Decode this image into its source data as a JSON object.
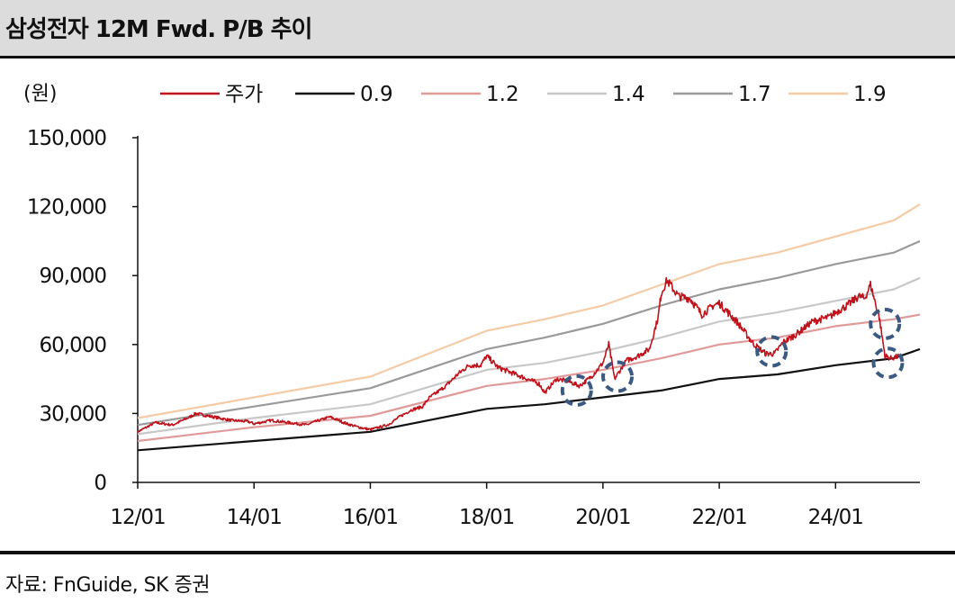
{
  "header": {
    "title": "삼성전자 12M Fwd. P/B 추이"
  },
  "source": {
    "text": "자료: FnGuide, SK 증권"
  },
  "chart_data": {
    "type": "line",
    "title": "삼성전자 12M Fwd. P/B 추이",
    "unit_label": "(원)",
    "xlabel": "",
    "ylabel": "(원)",
    "ylim": [
      0,
      150000
    ],
    "yticks": [
      0,
      30000,
      60000,
      90000,
      120000,
      150000
    ],
    "ytick_labels": [
      "0",
      "30,000",
      "60,000",
      "90,000",
      "120,000",
      "150,000"
    ],
    "xlim": [
      2012.0,
      2025.45
    ],
    "xticks": [
      2012,
      2014,
      2016,
      2018,
      2020,
      2022,
      2024
    ],
    "xtick_labels": [
      "12/01",
      "14/01",
      "16/01",
      "18/01",
      "20/01",
      "22/01",
      "24/01"
    ],
    "legend_position": "top",
    "series": [
      {
        "name": "주가",
        "color": "#c0121a",
        "noisy": true,
        "x": [
          2012.0,
          2012.3,
          2012.6,
          2012.9,
          2013.0,
          2013.3,
          2013.6,
          2013.9,
          2014.0,
          2014.3,
          2014.6,
          2014.9,
          2015.0,
          2015.3,
          2015.6,
          2015.8,
          2016.0,
          2016.3,
          2016.5,
          2016.7,
          2016.9,
          2017.0,
          2017.3,
          2017.5,
          2017.7,
          2017.9,
          2018.0,
          2018.2,
          2018.4,
          2018.6,
          2018.9,
          2019.0,
          2019.2,
          2019.4,
          2019.6,
          2019.8,
          2020.0,
          2020.1,
          2020.2,
          2020.4,
          2020.6,
          2020.8,
          2020.95,
          2021.0,
          2021.1,
          2021.3,
          2021.5,
          2021.7,
          2021.9,
          2022.0,
          2022.3,
          2022.6,
          2022.8,
          2022.95,
          2023.1,
          2023.3,
          2023.6,
          2023.9,
          2024.0,
          2024.2,
          2024.4,
          2024.5,
          2024.6,
          2024.75,
          2024.85,
          2024.95,
          2025.1
        ],
        "y": [
          22000,
          26000,
          25000,
          28500,
          30000,
          28500,
          27000,
          26500,
          25500,
          27000,
          26000,
          25000,
          26000,
          28500,
          25500,
          24000,
          23000,
          25000,
          28500,
          31500,
          33000,
          36500,
          42000,
          47000,
          51000,
          51000,
          55000,
          50000,
          48000,
          46000,
          43000,
          39000,
          45000,
          44000,
          42000,
          46000,
          52000,
          60000,
          45000,
          53000,
          55000,
          58000,
          72000,
          82000,
          88000,
          81000,
          80000,
          73000,
          77000,
          78000,
          70000,
          60000,
          56000,
          56000,
          61000,
          64000,
          70000,
          72000,
          74000,
          77000,
          81000,
          80000,
          86000,
          72000,
          55000,
          54000,
          55000
        ]
      },
      {
        "name": "0.9",
        "color": "#111111",
        "noisy": false,
        "x": [
          2012.0,
          2014.0,
          2016.0,
          2018.0,
          2019.0,
          2020.0,
          2021.0,
          2022.0,
          2023.0,
          2024.0,
          2025.0,
          2025.45
        ],
        "y": [
          14000,
          18000,
          22000,
          32000,
          34000,
          37000,
          40000,
          45000,
          47000,
          51000,
          54000,
          58000
        ]
      },
      {
        "name": "1.2",
        "color": "#e19a9a",
        "noisy": false,
        "x": [
          2012.0,
          2014.0,
          2016.0,
          2018.0,
          2019.0,
          2020.0,
          2021.0,
          2022.0,
          2023.0,
          2024.0,
          2025.0,
          2025.45
        ],
        "y": [
          18000,
          24000,
          29000,
          42000,
          45000,
          49000,
          54000,
          60000,
          63000,
          68000,
          71000,
          73000
        ]
      },
      {
        "name": "1.4",
        "color": "#c8c8c8",
        "noisy": false,
        "x": [
          2012.0,
          2014.0,
          2016.0,
          2018.0,
          2019.0,
          2020.0,
          2021.0,
          2022.0,
          2023.0,
          2024.0,
          2025.0,
          2025.45
        ],
        "y": [
          21000,
          28000,
          34000,
          49000,
          52000,
          57000,
          63000,
          70000,
          74000,
          79000,
          84000,
          89000
        ]
      },
      {
        "name": "1.7",
        "color": "#9a9a9a",
        "noisy": false,
        "x": [
          2012.0,
          2014.0,
          2016.0,
          2018.0,
          2019.0,
          2020.0,
          2021.0,
          2022.0,
          2023.0,
          2024.0,
          2025.0,
          2025.45
        ],
        "y": [
          25000,
          33000,
          41000,
          58000,
          63000,
          69000,
          77000,
          84000,
          89000,
          95000,
          100000,
          105000
        ]
      },
      {
        "name": "1.9",
        "color": "#f5cba6",
        "noisy": false,
        "x": [
          2012.0,
          2014.0,
          2016.0,
          2018.0,
          2019.0,
          2020.0,
          2021.0,
          2022.0,
          2023.0,
          2024.0,
          2025.0,
          2025.45
        ],
        "y": [
          28000,
          37000,
          46000,
          66000,
          71000,
          77000,
          86000,
          95000,
          100000,
          107000,
          114000,
          121000
        ]
      }
    ],
    "annotations": [
      {
        "type": "dashed-circle",
        "x": 2019.55,
        "y": 40000,
        "color": "#3a5a82"
      },
      {
        "type": "dashed-circle",
        "x": 2020.25,
        "y": 46000,
        "color": "#3a5a82"
      },
      {
        "type": "dashed-circle",
        "x": 2022.9,
        "y": 57000,
        "color": "#3a5a82"
      },
      {
        "type": "dashed-circle",
        "x": 2024.85,
        "y": 69000,
        "color": "#3a5a82"
      },
      {
        "type": "dashed-circle",
        "x": 2024.9,
        "y": 52000,
        "color": "#3a5a82"
      }
    ]
  }
}
